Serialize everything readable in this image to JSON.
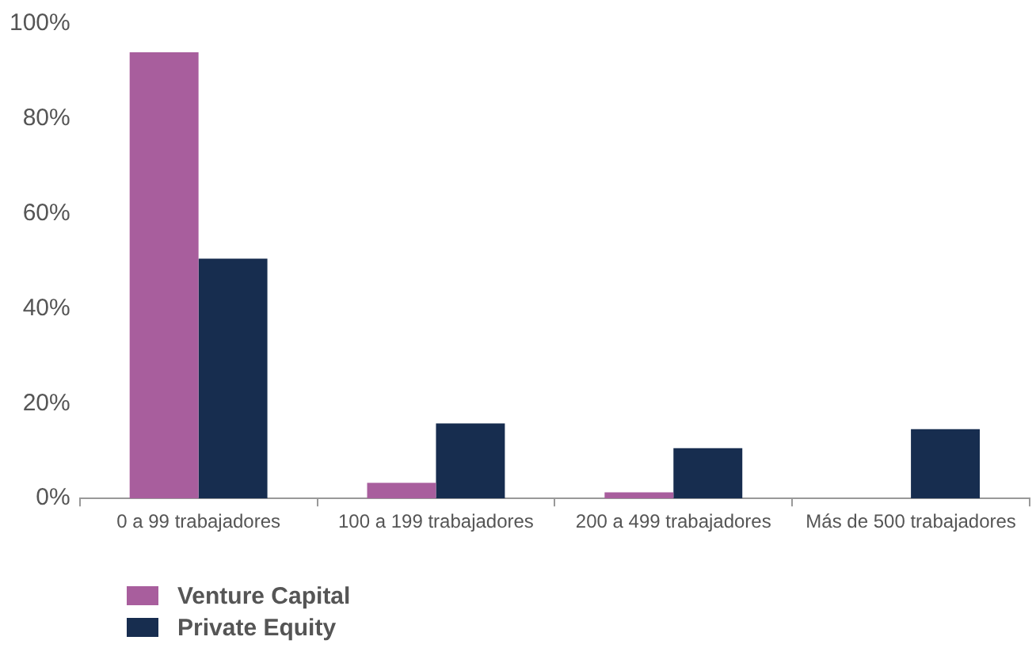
{
  "chart_data": {
    "type": "bar",
    "categories": [
      "0 a 99 trabajadores",
      "100 a 199 trabajadores",
      "200 a 499 trabajadores",
      "Más de 500 trabajadores"
    ],
    "series": [
      {
        "name": "Venture Capital",
        "color": "#a85e9d",
        "values": [
          94,
          3.3,
          1.3,
          0
        ]
      },
      {
        "name": "Private Equity",
        "color": "#172d4f",
        "values": [
          50.5,
          15.8,
          10.6,
          14.6
        ]
      }
    ],
    "ylim": [
      0,
      100
    ],
    "yticks": [
      {
        "value": 0,
        "label": "0%"
      },
      {
        "value": 20,
        "label": "20%"
      },
      {
        "value": 40,
        "label": "40%"
      },
      {
        "value": 60,
        "label": "60%"
      },
      {
        "value": 80,
        "label": "80%"
      },
      {
        "value": 100,
        "label": "100%"
      }
    ],
    "grid": false,
    "legend": "bottom left"
  }
}
